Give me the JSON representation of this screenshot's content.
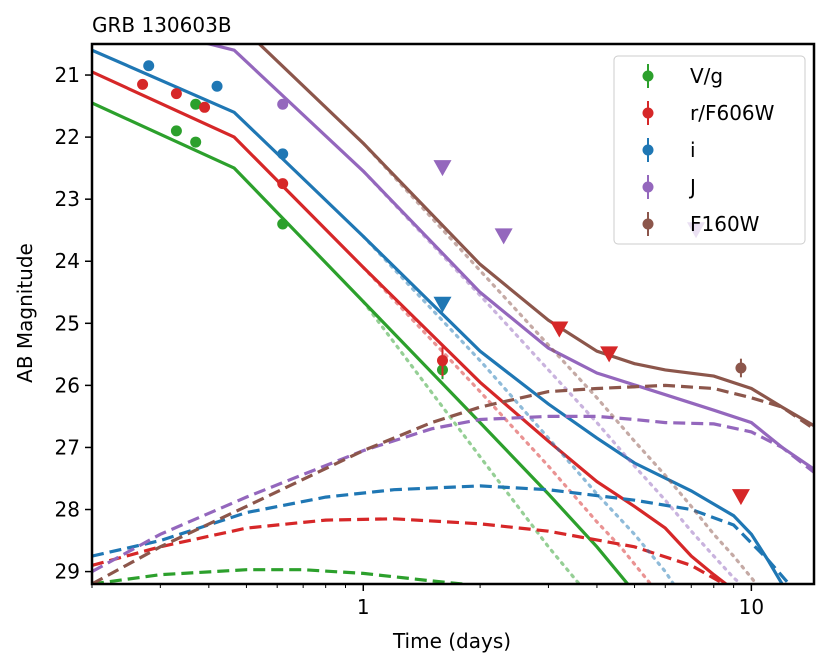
{
  "chart_data": {
    "type": "line",
    "title": "GRB 130603B",
    "xlabel": "Time (days)",
    "ylabel": "AB Magnitude",
    "xscale": "log",
    "xlim": [
      0.2,
      14.5
    ],
    "ylim": [
      29.2,
      20.5
    ],
    "x_tick_labels": [
      {
        "value": 1,
        "label": "1"
      },
      {
        "value": 10,
        "label": "10"
      }
    ],
    "y_tick_labels": [
      "21",
      "22",
      "23",
      "24",
      "25",
      "26",
      "27",
      "28",
      "29"
    ],
    "legend_position": "top-right",
    "series": [
      {
        "name": "V/g",
        "color": "#2ca02c",
        "detections": [
          {
            "t": 0.33,
            "mag": 21.9
          },
          {
            "t": 0.37,
            "mag": 22.08
          },
          {
            "t": 0.37,
            "mag": 21.47
          },
          {
            "t": 0.62,
            "mag": 23.4
          },
          {
            "t": 1.6,
            "mag": 25.75,
            "err": 0.15
          }
        ],
        "upper_limits": [],
        "total_model": [
          [
            0.2,
            21.45
          ],
          [
            0.465,
            22.5
          ],
          [
            1,
            24.65
          ],
          [
            2,
            26.6
          ],
          [
            3,
            27.75
          ],
          [
            4,
            28.6
          ],
          [
            4.8,
            29.2
          ]
        ],
        "kilonova_model": [
          [
            0.2,
            29.2
          ],
          [
            0.3,
            29.05
          ],
          [
            0.5,
            28.97
          ],
          [
            0.7,
            28.97
          ],
          [
            1,
            29.03
          ],
          [
            1.5,
            29.15
          ],
          [
            1.8,
            29.2
          ]
        ],
        "afterglow_model": [
          [
            1,
            24.65
          ],
          [
            2,
            27.15
          ],
          [
            3,
            28.6
          ],
          [
            3.6,
            29.2
          ]
        ]
      },
      {
        "name": "r/F606W",
        "color": "#d62728",
        "detections": [
          {
            "t": 0.27,
            "mag": 21.15
          },
          {
            "t": 0.33,
            "mag": 21.3
          },
          {
            "t": 0.39,
            "mag": 21.52
          },
          {
            "t": 0.62,
            "mag": 22.75
          },
          {
            "t": 1.6,
            "mag": 25.6,
            "err": 0.25
          }
        ],
        "upper_limits": [
          {
            "t": 3.2,
            "mag": 25.1
          },
          {
            "t": 4.3,
            "mag": 25.5
          },
          {
            "t": 9.4,
            "mag": 27.8
          }
        ],
        "total_model": [
          [
            0.2,
            20.95
          ],
          [
            0.465,
            22.0
          ],
          [
            1,
            24.1
          ],
          [
            2,
            25.95
          ],
          [
            3,
            26.9
          ],
          [
            4,
            27.55
          ],
          [
            5,
            27.95
          ],
          [
            6,
            28.3
          ],
          [
            7,
            28.75
          ],
          [
            8,
            29.05
          ],
          [
            8.6,
            29.2
          ]
        ],
        "kilonova_model": [
          [
            0.2,
            28.9
          ],
          [
            0.3,
            28.6
          ],
          [
            0.5,
            28.3
          ],
          [
            0.8,
            28.17
          ],
          [
            1.2,
            28.15
          ],
          [
            2,
            28.23
          ],
          [
            3,
            28.35
          ],
          [
            5,
            28.6
          ],
          [
            7,
            28.9
          ],
          [
            8.5,
            29.2
          ]
        ],
        "afterglow_model": [
          [
            1,
            24.1
          ],
          [
            2,
            26.1
          ],
          [
            3,
            27.3
          ],
          [
            4,
            28.2
          ],
          [
            4.6,
            28.6
          ],
          [
            5.5,
            29.2
          ]
        ]
      },
      {
        "name": "i",
        "color": "#1f77b4",
        "detections": [
          {
            "t": 0.28,
            "mag": 20.85
          },
          {
            "t": 0.42,
            "mag": 21.18
          },
          {
            "t": 0.62,
            "mag": 22.27
          }
        ],
        "upper_limits": [
          {
            "t": 1.6,
            "mag": 24.7
          }
        ],
        "total_model": [
          [
            0.2,
            20.6
          ],
          [
            0.465,
            21.6
          ],
          [
            1,
            23.6
          ],
          [
            2,
            25.45
          ],
          [
            3,
            26.3
          ],
          [
            4,
            26.85
          ],
          [
            5,
            27.25
          ],
          [
            7,
            27.7
          ],
          [
            9,
            28.1
          ],
          [
            10,
            28.4
          ],
          [
            11,
            28.8
          ],
          [
            12,
            29.2
          ]
        ],
        "kilonova_model": [
          [
            0.2,
            28.75
          ],
          [
            0.3,
            28.5
          ],
          [
            0.5,
            28.05
          ],
          [
            0.8,
            27.8
          ],
          [
            1.2,
            27.68
          ],
          [
            2,
            27.62
          ],
          [
            3,
            27.68
          ],
          [
            5,
            27.85
          ],
          [
            7,
            28.0
          ],
          [
            9,
            28.25
          ],
          [
            11,
            28.8
          ],
          [
            12.5,
            29.2
          ]
        ],
        "afterglow_model": [
          [
            1,
            23.6
          ],
          [
            2,
            25.6
          ],
          [
            3,
            26.85
          ],
          [
            4,
            27.75
          ],
          [
            5,
            28.4
          ],
          [
            6,
            29.0
          ],
          [
            6.3,
            29.2
          ]
        ]
      },
      {
        "name": "J",
        "color": "#9467bd",
        "detections": [
          {
            "t": 0.62,
            "mag": 21.47
          }
        ],
        "upper_limits": [
          {
            "t": 1.6,
            "mag": 22.5
          },
          {
            "t": 2.3,
            "mag": 23.6
          },
          {
            "t": 7.2,
            "mag": 23.5
          }
        ],
        "total_model": [
          [
            0.3,
            20.3
          ],
          [
            0.465,
            20.6
          ],
          [
            1,
            22.55
          ],
          [
            2,
            24.5
          ],
          [
            3,
            25.4
          ],
          [
            4,
            25.8
          ],
          [
            6,
            26.15
          ],
          [
            8,
            26.4
          ],
          [
            10,
            26.6
          ],
          [
            12,
            27.0
          ],
          [
            14.5,
            27.35
          ]
        ],
        "kilonova_model": [
          [
            0.2,
            29.0
          ],
          [
            0.3,
            28.4
          ],
          [
            0.5,
            27.8
          ],
          [
            1,
            27.05
          ],
          [
            1.5,
            26.7
          ],
          [
            2,
            26.55
          ],
          [
            3,
            26.5
          ],
          [
            4,
            26.5
          ],
          [
            5,
            26.55
          ],
          [
            6,
            26.6
          ],
          [
            8,
            26.62
          ],
          [
            10,
            26.75
          ],
          [
            12,
            27.0
          ],
          [
            14.5,
            27.4
          ]
        ],
        "afterglow_model": [
          [
            1,
            22.55
          ],
          [
            2,
            24.55
          ],
          [
            3,
            25.75
          ],
          [
            4,
            26.6
          ],
          [
            5,
            27.3
          ],
          [
            6,
            27.85
          ],
          [
            7,
            28.35
          ],
          [
            8,
            28.75
          ],
          [
            9,
            29.1
          ],
          [
            9.4,
            29.2
          ]
        ]
      },
      {
        "name": "F160W",
        "color": "#8c564b",
        "detections": [
          {
            "t": 9.4,
            "mag": 25.72,
            "err": 0.15
          }
        ],
        "upper_limits": [],
        "total_model": [
          [
            0.5,
            20.3
          ],
          [
            1,
            22.1
          ],
          [
            2,
            24.05
          ],
          [
            3,
            24.95
          ],
          [
            4,
            25.45
          ],
          [
            5,
            25.65
          ],
          [
            6,
            25.75
          ],
          [
            8,
            25.85
          ],
          [
            10,
            26.05
          ],
          [
            12,
            26.35
          ],
          [
            14.5,
            26.65
          ]
        ],
        "kilonova_model": [
          [
            0.2,
            29.2
          ],
          [
            0.3,
            28.6
          ],
          [
            0.5,
            27.95
          ],
          [
            1,
            27.05
          ],
          [
            1.5,
            26.6
          ],
          [
            2,
            26.35
          ],
          [
            3,
            26.1
          ],
          [
            4,
            26.05
          ],
          [
            6,
            26.0
          ],
          [
            8,
            26.05
          ],
          [
            10,
            26.2
          ],
          [
            12,
            26.35
          ],
          [
            14.5,
            26.7
          ]
        ],
        "afterglow_model": [
          [
            1,
            22.1
          ],
          [
            2,
            24.15
          ],
          [
            3,
            25.35
          ],
          [
            4,
            26.2
          ],
          [
            5,
            26.9
          ],
          [
            6,
            27.45
          ],
          [
            7,
            27.95
          ],
          [
            8,
            28.4
          ],
          [
            9,
            28.75
          ],
          [
            10,
            29.1
          ],
          [
            10.3,
            29.2
          ]
        ]
      }
    ]
  }
}
